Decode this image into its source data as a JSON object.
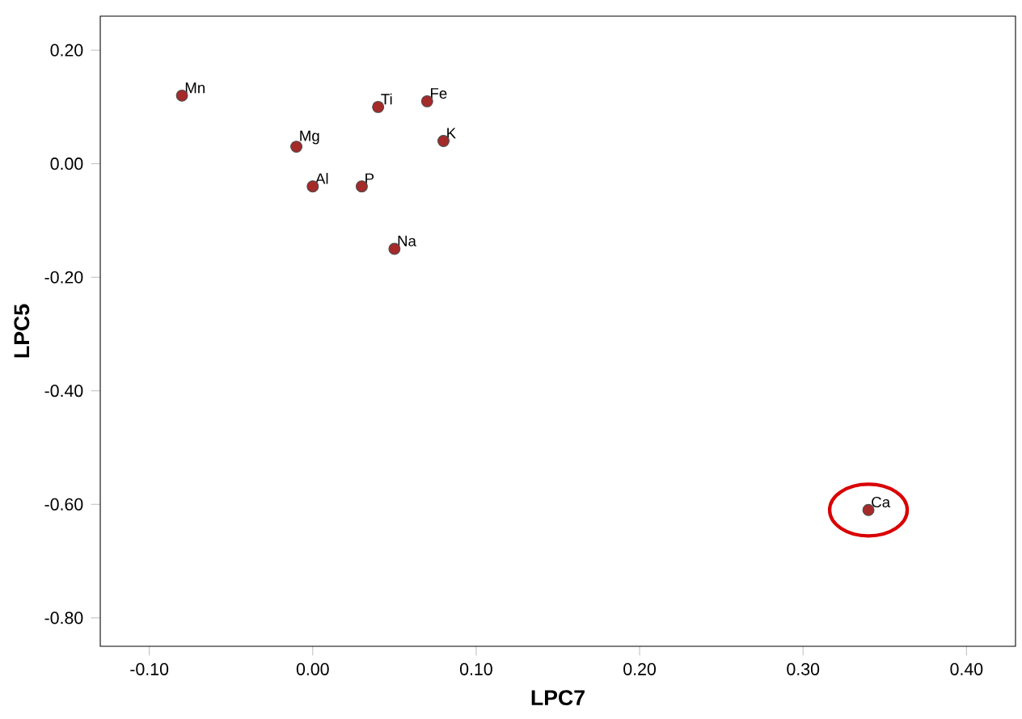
{
  "chart_data": {
    "type": "scatter",
    "xlabel": "LPC7",
    "ylabel": "LPC5",
    "x": [
      -0.08,
      -0.01,
      0.04,
      0.07,
      0.08,
      0.0,
      0.03,
      0.05,
      0.34
    ],
    "series": [
      {
        "color": "#a52a2a",
        "values": [
          0.12,
          0.03,
          0.1,
          0.11,
          0.04,
          -0.04,
          -0.04,
          -0.15,
          -0.61
        ],
        "value_labels": [
          "Mn",
          "Mg",
          "Ti",
          "Fe",
          "K",
          "Al",
          "P",
          "Na",
          "Ca"
        ]
      }
    ],
    "xlim": [
      -0.13,
      0.43
    ],
    "ylim": [
      -0.85,
      0.26
    ],
    "xticks": [
      {
        "value": -0.1,
        "label": "-0.10"
      },
      {
        "value": 0,
        "label": "0.00"
      },
      {
        "value": 0.1,
        "label": "0.10"
      },
      {
        "value": 0.2,
        "label": "0.20"
      },
      {
        "value": 0.3,
        "label": "0.30"
      },
      {
        "value": 0.4,
        "label": "0.40"
      }
    ],
    "yticks": [
      {
        "value": 0.2,
        "label": "0.20"
      },
      {
        "value": 0,
        "label": "0.00"
      },
      {
        "value": -0.2,
        "label": "-0.20"
      },
      {
        "value": -0.4,
        "label": "-0.40"
      },
      {
        "value": -0.6,
        "label": "-0.60"
      },
      {
        "value": -0.8,
        "label": "-0.80"
      }
    ],
    "grid": false,
    "marker": "circle"
  }
}
